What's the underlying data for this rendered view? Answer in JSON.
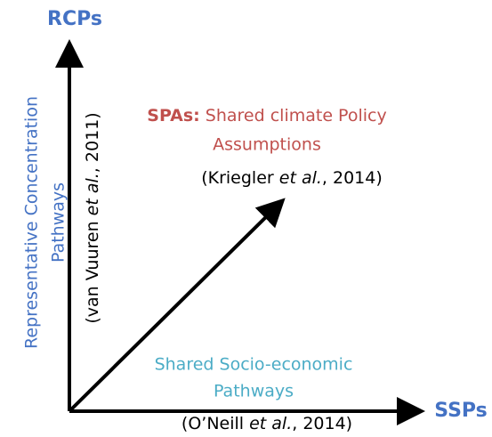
{
  "axes": {
    "y": {
      "label": "RCPs",
      "description": [
        "Representative Concentration",
        "Pathways"
      ],
      "citation": [
        "(van Vuuren ",
        "et al.",
        ", 2011)"
      ]
    },
    "x": {
      "label": "SSPs",
      "description": [
        "Shared Socio-economic",
        "Pathways"
      ],
      "citation": [
        "(O’Neill ",
        "et al.",
        ", 2014)"
      ]
    }
  },
  "diagonal": {
    "abbreviation": "SPAs:",
    "description": [
      " Shared climate Policy",
      "Assumptions"
    ],
    "citation": [
      "(Kriegler ",
      "et al.",
      ", 2014)"
    ]
  }
}
